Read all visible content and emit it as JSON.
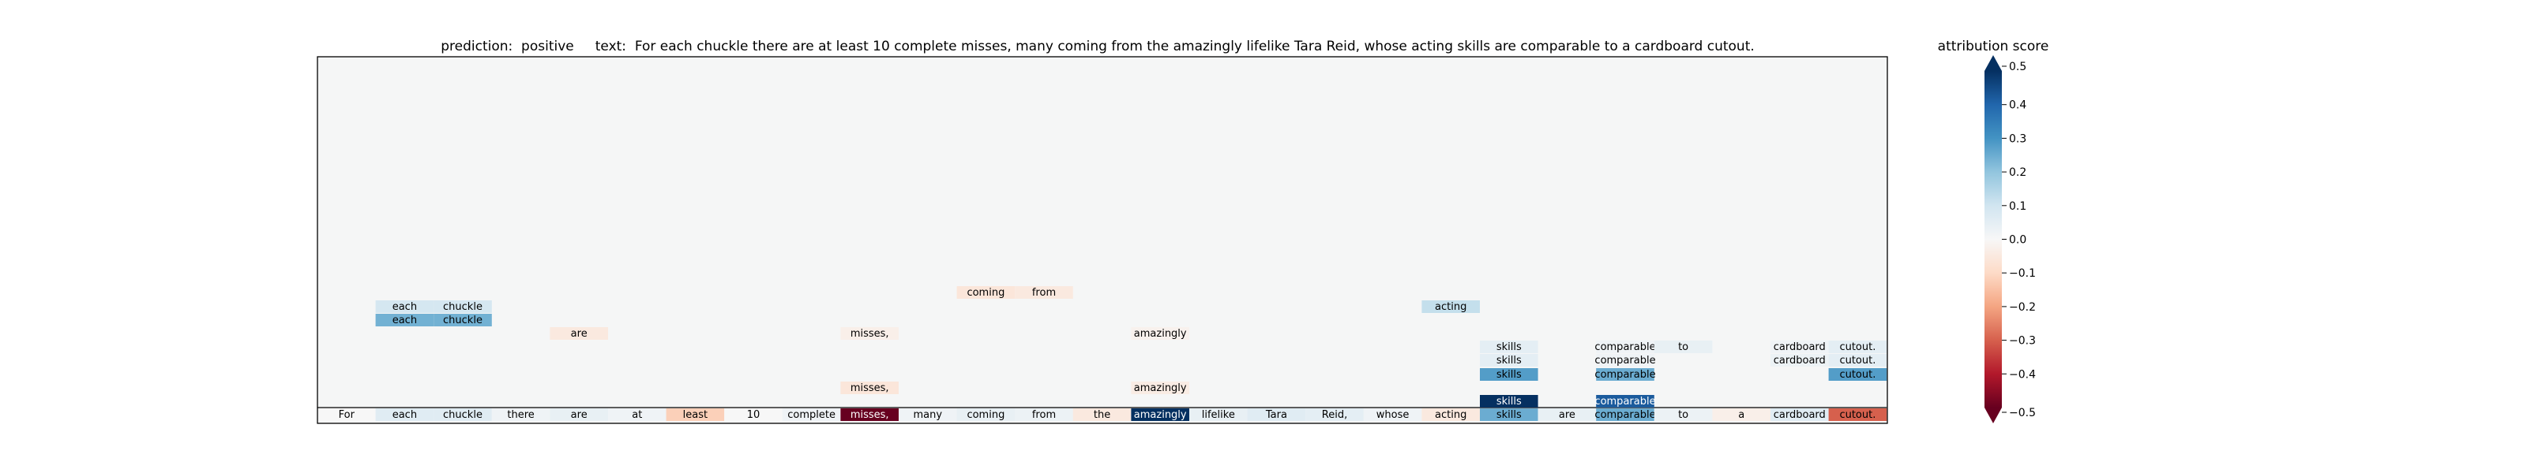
{
  "chart_data": {
    "type": "heatmap",
    "title": "prediction:  positive     text:  For each chuckle there are at least 10 complete misses, many coming from the amazingly lifelike Tara Reid, whose acting skills are comparable to a cardboard cutout.",
    "prediction_label": "prediction:",
    "prediction_value": "positive",
    "text_label": "text:",
    "text_value": "For each chuckle there are at least 10 complete misses, many coming from the amazingly lifelike Tara Reid, whose acting skills are comparable to a cardboard cutout.",
    "tokens": [
      "For",
      "each",
      "chuckle",
      "there",
      "are",
      "at",
      "least",
      "10",
      "complete",
      "misses,",
      "many",
      "coming",
      "from",
      "the",
      "amazingly",
      "lifelike",
      "Tara",
      "Reid,",
      "whose",
      "acting",
      "skills",
      "are",
      "comparable",
      "to",
      "a",
      "cardboard",
      "cutout."
    ],
    "base_scores": [
      0.0,
      0.06,
      0.06,
      0.02,
      0.04,
      0.02,
      -0.12,
      0.0,
      0.02,
      -0.5,
      0.02,
      0.04,
      0.03,
      -0.05,
      0.5,
      0.04,
      0.06,
      0.05,
      0.02,
      -0.05,
      0.25,
      0.04,
      0.25,
      0.03,
      -0.03,
      0.06,
      -0.3
    ],
    "layers": [
      {
        "row": 0,
        "cells": [
          {
            "token": 20,
            "score": 0.5
          },
          {
            "token": 22,
            "score": 0.42
          }
        ]
      },
      {
        "row": 1,
        "cells": [
          {
            "token": 9,
            "score": -0.06
          },
          {
            "token": 14,
            "score": -0.04
          }
        ]
      },
      {
        "row": 2,
        "cells": [
          {
            "token": 20,
            "score": 0.28
          },
          {
            "token": 22,
            "score": 0.25
          },
          {
            "token": 26,
            "score": 0.28
          }
        ]
      },
      {
        "row": 3,
        "cells": [
          {
            "token": 20,
            "score": 0.05
          },
          {
            "token": 22,
            "score": 0.02
          },
          {
            "token": 25,
            "score": 0.03
          },
          {
            "token": 26,
            "score": 0.05
          }
        ]
      },
      {
        "row": 4,
        "cells": [
          {
            "token": 20,
            "score": 0.05
          },
          {
            "token": 22,
            "score": 0.02
          },
          {
            "token": 23,
            "score": 0.04
          },
          {
            "token": 25,
            "score": 0.02
          },
          {
            "token": 26,
            "score": 0.05
          }
        ]
      },
      {
        "row": 5,
        "cells": [
          {
            "token": 4,
            "score": -0.05
          },
          {
            "token": 9,
            "score": -0.03
          },
          {
            "token": 14,
            "score": -0.02
          }
        ]
      },
      {
        "row": 6,
        "cells": [
          {
            "token": 1,
            "score": 0.24
          },
          {
            "token": 2,
            "score": 0.24
          }
        ]
      },
      {
        "row": 7,
        "cells": [
          {
            "token": 1,
            "score": 0.09
          },
          {
            "token": 2,
            "score": 0.09
          },
          {
            "token": 19,
            "score": 0.12
          }
        ]
      },
      {
        "row": 8,
        "cells": [
          {
            "token": 11,
            "score": -0.06
          },
          {
            "token": 12,
            "score": -0.05
          }
        ]
      }
    ],
    "colorbar": {
      "label": "attribution score",
      "min": -0.5,
      "max": 0.5,
      "ticks": [
        0.5,
        0.4,
        0.3,
        0.2,
        0.1,
        0.0,
        -0.1,
        -0.2,
        -0.3,
        -0.4,
        -0.5
      ],
      "tick_labels": [
        "0.5",
        "0.4",
        "0.3",
        "0.2",
        "0.1",
        "0.0",
        "−0.1",
        "−0.2",
        "−0.3",
        "−0.4",
        "−0.5"
      ],
      "colormap": "RdBu"
    },
    "grid": false,
    "legend": "right"
  }
}
